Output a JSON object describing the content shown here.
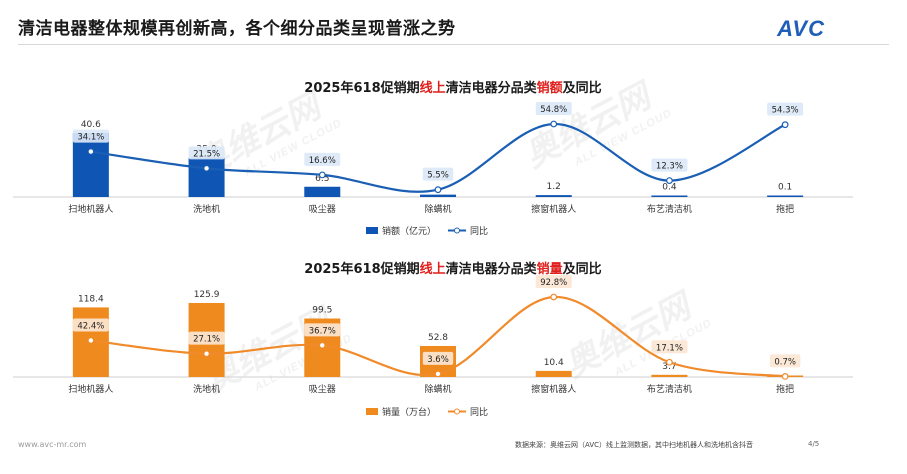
{
  "page": {
    "title": "清洁电器整体规模再创新高，各个细分品类呈现普涨之势",
    "logo_text": "AVC",
    "watermark_big": "奥维云网",
    "watermark_small": "ALL VIEW CLOUD",
    "footer_url": "www.avc-mr.com",
    "footer_source": "数据来源：奥维云网（AVC）线上监测数据，其中扫地机器人和洗地机含抖音",
    "footer_page": "4/5"
  },
  "chart_data": [
    {
      "type": "bar",
      "title": {
        "pre": "2025年618促销期",
        "hl1": "线上",
        "mid": "清洁电器分品类",
        "hl2": "销额",
        "post": "及同比"
      },
      "categories": [
        "扫地机器人",
        "洗地机",
        "吸尘器",
        "除螨机",
        "擦窗机器人",
        "布艺清洁机",
        "拖把"
      ],
      "series": [
        {
          "name": "销额（亿元）",
          "kind": "bar",
          "values": [
            40.6,
            25.0,
            6.5,
            1.5,
            1.2,
            0.4,
            0.1
          ],
          "labels": [
            "40.6",
            "25.0",
            "6.5",
            "",
            "1.2",
            "0.4",
            "0.1"
          ]
        },
        {
          "name": "同比",
          "kind": "line",
          "values": [
            34.1,
            21.5,
            16.6,
            5.5,
            54.8,
            12.3,
            54.3
          ],
          "labels": [
            "34.1%",
            "21.5%",
            "16.6%",
            "5.5%",
            "54.8%",
            "12.3%",
            "54.3%"
          ]
        }
      ],
      "colors": {
        "bar": "#0f55b4",
        "line": "#1a5fb4",
        "label_bg": "#dbe8f7",
        "title_highlight": "#e0201c"
      },
      "legend_position": "bottom-center"
    },
    {
      "type": "bar",
      "title": {
        "pre": "2025年618促销期",
        "hl1": "线上",
        "mid": "清洁电器分品类",
        "hl2": "销量",
        "post": "及同比"
      },
      "categories": [
        "扫地机器人",
        "洗地机",
        "吸尘器",
        "除螨机",
        "擦窗机器人",
        "布艺清洁机",
        "拖把"
      ],
      "series": [
        {
          "name": "销量（万台）",
          "kind": "bar",
          "values": [
            118.4,
            125.9,
            99.5,
            52.8,
            10.4,
            3.7,
            0.8
          ],
          "labels": [
            "118.4",
            "125.9",
            "99.5",
            "52.8",
            "10.4",
            "3.7",
            ""
          ]
        },
        {
          "name": "同比",
          "kind": "line",
          "values": [
            42.4,
            27.1,
            36.7,
            3.6,
            92.8,
            17.1,
            0.7
          ],
          "labels": [
            "42.4%",
            "27.1%",
            "36.7%",
            "3.6%",
            "92.8%",
            "17.1%",
            "0.7%"
          ]
        }
      ],
      "colors": {
        "bar": "#ef8a1f",
        "line": "#f08a2a",
        "label_bg": "#fbe6d2",
        "title_highlight": "#e0201c"
      },
      "legend_position": "bottom-center"
    }
  ]
}
